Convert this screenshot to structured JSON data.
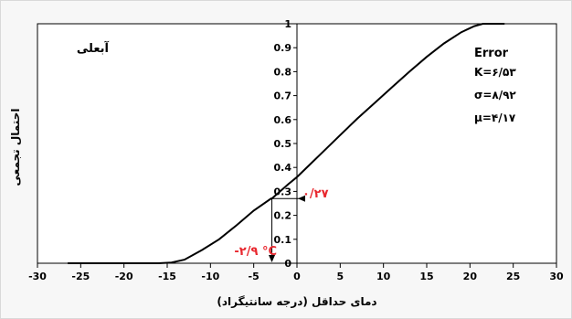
{
  "chart_data": {
    "type": "line",
    "title": "",
    "xlabel": "دمای حداقل (درجه سانتیگراد)",
    "ylabel": "احتمال تجمعی",
    "xlim": [
      -30,
      30
    ],
    "ylim": [
      0,
      1
    ],
    "x_ticks": [
      "-30",
      "-25",
      "-20",
      "-15",
      "-10",
      "-5",
      "0",
      "5",
      "10",
      "15",
      "20",
      "25",
      "30"
    ],
    "y_ticks": [
      "0",
      "0.1",
      "0.2",
      "0.3",
      "0.4",
      "0.5",
      "0.6",
      "0.7",
      "0.8",
      "0.9",
      "1"
    ],
    "grid": false,
    "series": [
      {
        "x": [
          -26.5,
          -20,
          -16,
          -14.5,
          -13,
          -11,
          -9,
          -7,
          -5,
          -3,
          -2.9,
          -1,
          0,
          1,
          3,
          5,
          7,
          9,
          11,
          13,
          15,
          17,
          19,
          20.5,
          21.5,
          22.5,
          24
        ],
        "y": [
          0,
          0,
          0,
          0.003,
          0.015,
          0.055,
          0.1,
          0.158,
          0.22,
          0.27,
          0.27,
          0.33,
          0.36,
          0.395,
          0.465,
          0.535,
          0.605,
          0.67,
          0.735,
          0.8,
          0.862,
          0.918,
          0.965,
          0.99,
          1,
          1,
          1
        ]
      }
    ],
    "annotations": {
      "station": "آبعلی",
      "error_title": "Error",
      "k": "K=۶/۵۳",
      "sigma": "σ=۸/۹۲",
      "mu": "μ=۴/۱۷",
      "prob_label": "۰/۲۷",
      "temp_label": "-۲/۹ °C",
      "marker_x": -2.9,
      "marker_y": 0.27
    }
  }
}
